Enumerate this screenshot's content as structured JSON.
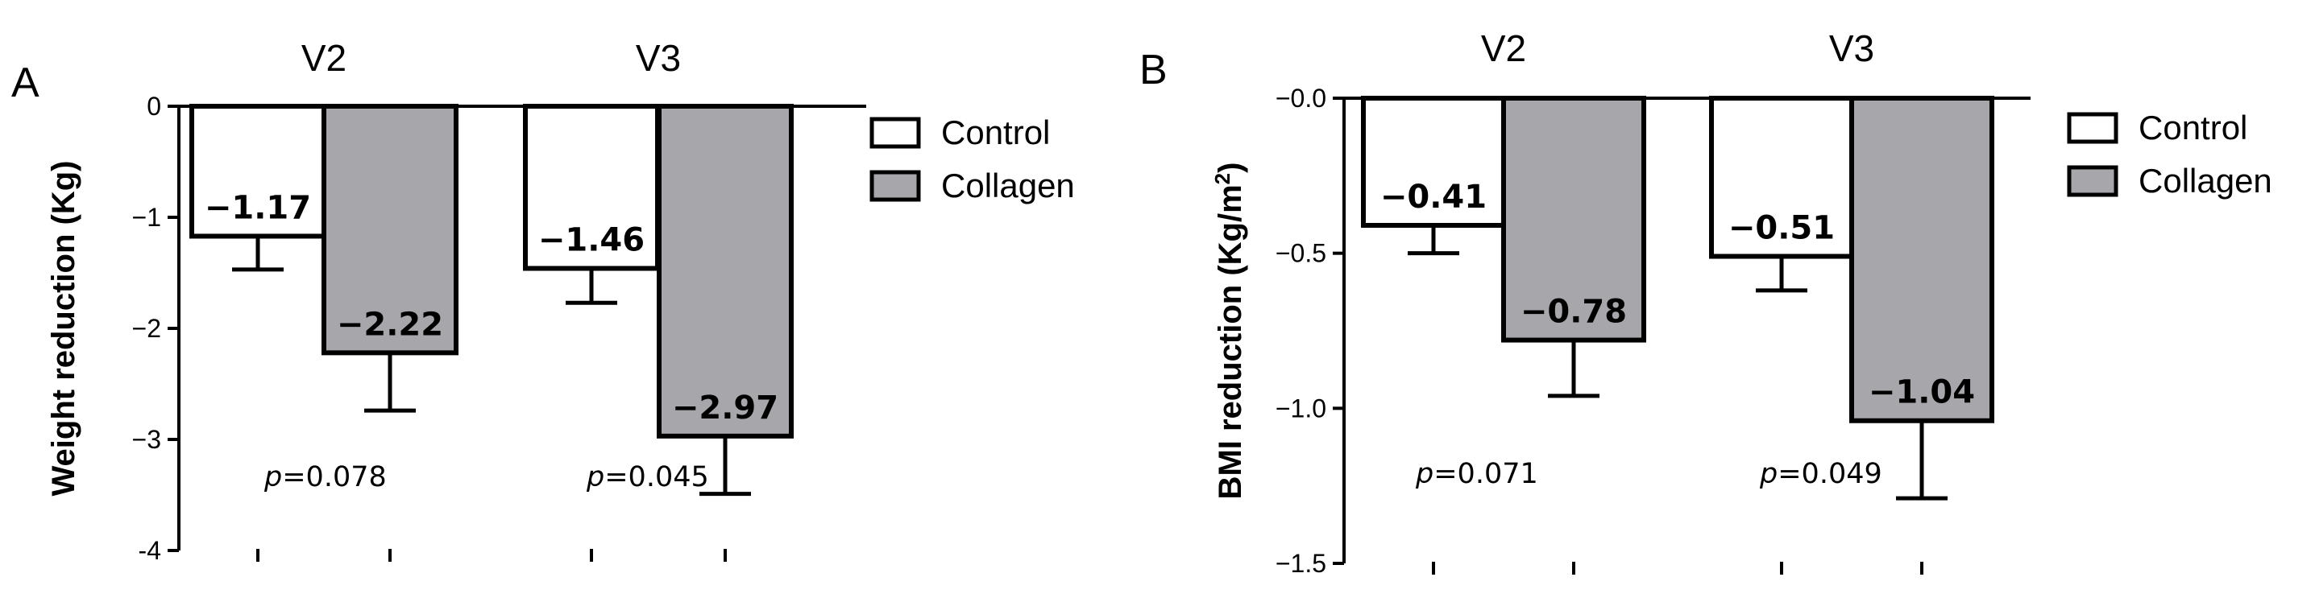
{
  "chart_data": [
    {
      "type": "bar",
      "panel_label": "A",
      "categories": [
        "V2",
        "V3"
      ],
      "series": [
        {
          "name": "Control",
          "values": [
            -1.17,
            -1.46
          ],
          "error": [
            0.3,
            0.31
          ],
          "value_labels": [
            "−1.17",
            "−1.46"
          ]
        },
        {
          "name": "Collagen",
          "values": [
            -2.22,
            -2.97
          ],
          "error": [
            0.52,
            0.52
          ],
          "value_labels": [
            "−2.22",
            "−2.97"
          ]
        }
      ],
      "ylabel": "Weight reduction (Kg)",
      "ylim": [
        -4,
        0
      ],
      "yticks": [
        0,
        -1,
        -2,
        -3,
        -4
      ],
      "ytick_labels": [
        "0",
        "−1",
        "−2",
        "−3",
        "-4"
      ],
      "p_values": [
        {
          "prefix": "p",
          "text": "=0.078"
        },
        {
          "prefix": "p",
          "text": "=0.045"
        }
      ],
      "legend_position": "top-right",
      "colors": {
        "Control": "#ffffff",
        "Collagen": "#a7a6ab"
      }
    },
    {
      "type": "bar",
      "panel_label": "B",
      "categories": [
        "V2",
        "V3"
      ],
      "series": [
        {
          "name": "Control",
          "values": [
            -0.41,
            -0.51
          ],
          "error": [
            0.09,
            0.11
          ],
          "value_labels": [
            "−0.41",
            "−0.51"
          ]
        },
        {
          "name": "Collagen",
          "values": [
            -0.78,
            -1.04
          ],
          "error": [
            0.18,
            0.25
          ],
          "value_labels": [
            "−0.78",
            "−1.04"
          ]
        }
      ],
      "ylabel": "BMI reduction (Kg/m",
      "ylabel_superscript": "2",
      "ylabel_suffix": ")",
      "ylim": [
        -1.5,
        0
      ],
      "yticks": [
        0,
        -0.5,
        -1.0,
        -1.5
      ],
      "ytick_labels": [
        "−0.0",
        "−0.5",
        "−1.0",
        "−1.5"
      ],
      "p_values": [
        {
          "prefix": "p",
          "text": "=0.071"
        },
        {
          "prefix": "p",
          "text": "=0.049"
        }
      ],
      "legend_position": "top-right",
      "colors": {
        "Control": "#ffffff",
        "Collagen": "#a7a6ab"
      }
    }
  ]
}
